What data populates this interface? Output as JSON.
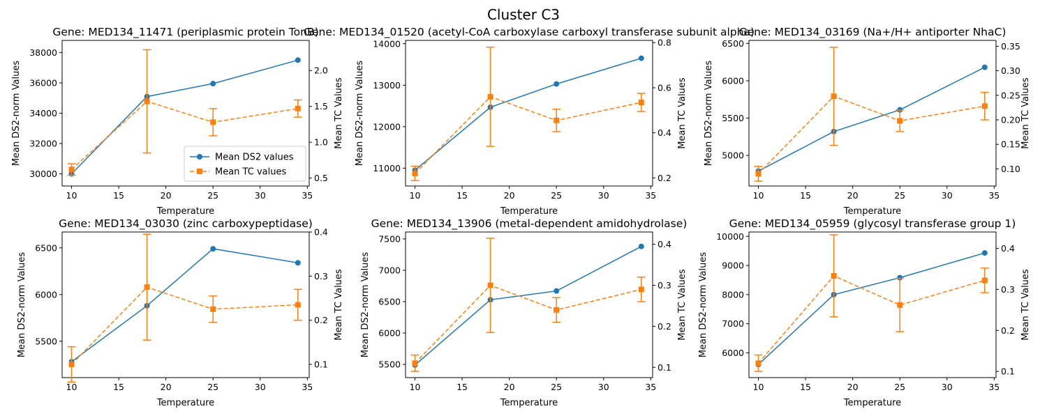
{
  "figure_title": "Cluster C3",
  "legend": {
    "ds2_label": "Mean DS2 values",
    "tc_label": "Mean TC values",
    "location": "lower-right of first panel"
  },
  "colors": {
    "ds2": "#1f77b4",
    "tc": "#ff7f0e"
  },
  "chart_data": [
    {
      "type": "line",
      "title": "Gene: MED134_11471 (periplasmic protein TonB)",
      "xlabel": "Temperature",
      "ylabel_left": "Mean DS2-norm Values",
      "ylabel_right": "Mean TC Values",
      "x": [
        10,
        18,
        25,
        34
      ],
      "xlim": [
        9,
        35.2
      ],
      "xticks": [
        10,
        15,
        20,
        25,
        30,
        35
      ],
      "ylim_left": [
        29200,
        38800
      ],
      "yticks_left": [
        30000,
        32000,
        34000,
        36000,
        38000
      ],
      "ylim_right": [
        0.39,
        2.42
      ],
      "yticks_right": [
        0.5,
        1.0,
        1.5,
        2.0
      ],
      "series": [
        {
          "name": "Mean DS2 values",
          "axis": "left",
          "style": "solid",
          "marker": "circle",
          "values": [
            30000,
            35100,
            35950,
            37500
          ],
          "err": [
            0,
            0,
            0,
            0
          ]
        },
        {
          "name": "Mean TC values",
          "axis": "right",
          "style": "dashed",
          "marker": "square",
          "values": [
            0.62,
            1.57,
            1.28,
            1.47
          ],
          "err": [
            0.08,
            0.72,
            0.19,
            0.12
          ]
        }
      ]
    },
    {
      "type": "line",
      "title": "Gene: MED134_01520 (acetyl-CoA carboxylase carboxyl transferase subunit alpha)",
      "xlabel": "Temperature",
      "ylabel_left": "Mean DS2-norm Values",
      "ylabel_right": "Mean TC Values",
      "x": [
        10,
        18,
        25,
        34
      ],
      "xlim": [
        9,
        35.2
      ],
      "xticks": [
        10,
        15,
        20,
        25,
        30,
        35
      ],
      "ylim_left": [
        10570,
        14080
      ],
      "yticks_left": [
        11000,
        12000,
        13000,
        14000
      ],
      "ylim_right": [
        0.164,
        0.81
      ],
      "yticks_right": [
        0.2,
        0.4,
        0.6,
        0.8
      ],
      "series": [
        {
          "name": "Mean DS2 values",
          "axis": "left",
          "style": "solid",
          "marker": "circle",
          "values": [
            10950,
            12470,
            13030,
            13650
          ],
          "err": [
            0,
            0,
            0,
            0
          ]
        },
        {
          "name": "Mean TC values",
          "axis": "right",
          "style": "dashed",
          "marker": "square",
          "values": [
            0.22,
            0.56,
            0.455,
            0.535
          ],
          "err": [
            0.032,
            0.22,
            0.05,
            0.04
          ]
        }
      ]
    },
    {
      "type": "line",
      "title": "Gene: MED134_03169 (Na+/H+ antiporter NhaC)",
      "xlabel": "Temperature",
      "ylabel_left": "Mean DS2-norm Values",
      "ylabel_right": "Mean TC Values",
      "x": [
        10,
        18,
        25,
        34
      ],
      "xlim": [
        9,
        35.2
      ],
      "xticks": [
        10,
        15,
        20,
        25,
        30,
        35
      ],
      "ylim_left": [
        4590,
        6540
      ],
      "yticks_left": [
        5000,
        5500,
        6000,
        6500
      ],
      "ylim_right": [
        0.065,
        0.362
      ],
      "yticks_right": [
        0.1,
        0.15,
        0.2,
        0.25,
        0.3,
        0.35
      ],
      "series": [
        {
          "name": "Mean DS2 values",
          "axis": "left",
          "style": "solid",
          "marker": "circle",
          "values": [
            4790,
            5320,
            5610,
            6180
          ],
          "err": [
            0,
            0,
            0,
            0
          ]
        },
        {
          "name": "Mean TC values",
          "axis": "right",
          "style": "dashed",
          "marker": "square",
          "values": [
            0.09,
            0.248,
            0.198,
            0.228
          ],
          "err": [
            0.015,
            0.1,
            0.022,
            0.028
          ]
        }
      ]
    },
    {
      "type": "line",
      "title": "Gene: MED134_03030 (zinc carboxypeptidase)",
      "xlabel": "Temperature",
      "ylabel_left": "Mean DS2-norm Values",
      "ylabel_right": "Mean TC Values",
      "x": [
        10,
        18,
        25,
        34
      ],
      "xlim": [
        9,
        35.2
      ],
      "xticks": [
        10,
        15,
        20,
        25,
        30,
        35
      ],
      "ylim_left": [
        5110,
        6670
      ],
      "yticks_left": [
        5500,
        6000,
        6500
      ],
      "ylim_right": [
        0.07,
        0.4
      ],
      "yticks_right": [
        0.1,
        0.2,
        0.3,
        0.4
      ],
      "series": [
        {
          "name": "Mean DS2 values",
          "axis": "left",
          "style": "solid",
          "marker": "circle",
          "values": [
            5280,
            5880,
            6490,
            6340
          ],
          "err": [
            0,
            0,
            0,
            0
          ]
        },
        {
          "name": "Mean TC values",
          "axis": "right",
          "style": "dashed",
          "marker": "square",
          "values": [
            0.1,
            0.275,
            0.225,
            0.235
          ],
          "err": [
            0.04,
            0.12,
            0.03,
            0.035
          ]
        }
      ]
    },
    {
      "type": "line",
      "title": "Gene: MED134_13906 (metal-dependent amidohydrolase)",
      "xlabel": "Temperature",
      "ylabel_left": "Mean DS2-norm Values",
      "ylabel_right": "Mean TC Values",
      "x": [
        10,
        18,
        25,
        34
      ],
      "xlim": [
        9,
        35.2
      ],
      "xticks": [
        10,
        15,
        20,
        25,
        30,
        35
      ],
      "ylim_left": [
        5290,
        7610
      ],
      "yticks_left": [
        5500,
        6000,
        6500,
        7000,
        7500
      ],
      "ylim_right": [
        0.075,
        0.43
      ],
      "yticks_right": [
        0.1,
        0.2,
        0.3,
        0.4
      ],
      "series": [
        {
          "name": "Mean DS2 values",
          "axis": "left",
          "style": "solid",
          "marker": "circle",
          "values": [
            5490,
            6530,
            6670,
            7380
          ],
          "err": [
            0,
            0,
            0,
            0
          ]
        },
        {
          "name": "Mean TC values",
          "axis": "right",
          "style": "dashed",
          "marker": "square",
          "values": [
            0.11,
            0.3,
            0.24,
            0.29
          ],
          "err": [
            0.02,
            0.115,
            0.03,
            0.03
          ]
        }
      ]
    },
    {
      "type": "line",
      "title": "Gene: MED134_05959 (glycosyl transferase group 1)",
      "xlabel": "Temperature",
      "ylabel_left": "Mean DS2-norm Values",
      "ylabel_right": "Mean TC Values",
      "x": [
        10,
        18,
        25,
        34
      ],
      "xlim": [
        9,
        35.2
      ],
      "xticks": [
        10,
        15,
        20,
        25,
        30,
        35
      ],
      "ylim_left": [
        5150,
        10150
      ],
      "yticks_left": [
        6000,
        7000,
        8000,
        9000,
        10000
      ],
      "ylim_right": [
        0.085,
        0.44
      ],
      "yticks_right": [
        0.1,
        0.2,
        0.3,
        0.4
      ],
      "series": [
        {
          "name": "Mean DS2 values",
          "axis": "left",
          "style": "solid",
          "marker": "circle",
          "values": [
            5600,
            8000,
            8580,
            9430
          ],
          "err": [
            0,
            0,
            0,
            0
          ]
        },
        {
          "name": "Mean TC values",
          "axis": "right",
          "style": "dashed",
          "marker": "square",
          "values": [
            0.12,
            0.333,
            0.262,
            0.322
          ],
          "err": [
            0.02,
            0.1,
            0.065,
            0.03
          ]
        }
      ]
    }
  ]
}
